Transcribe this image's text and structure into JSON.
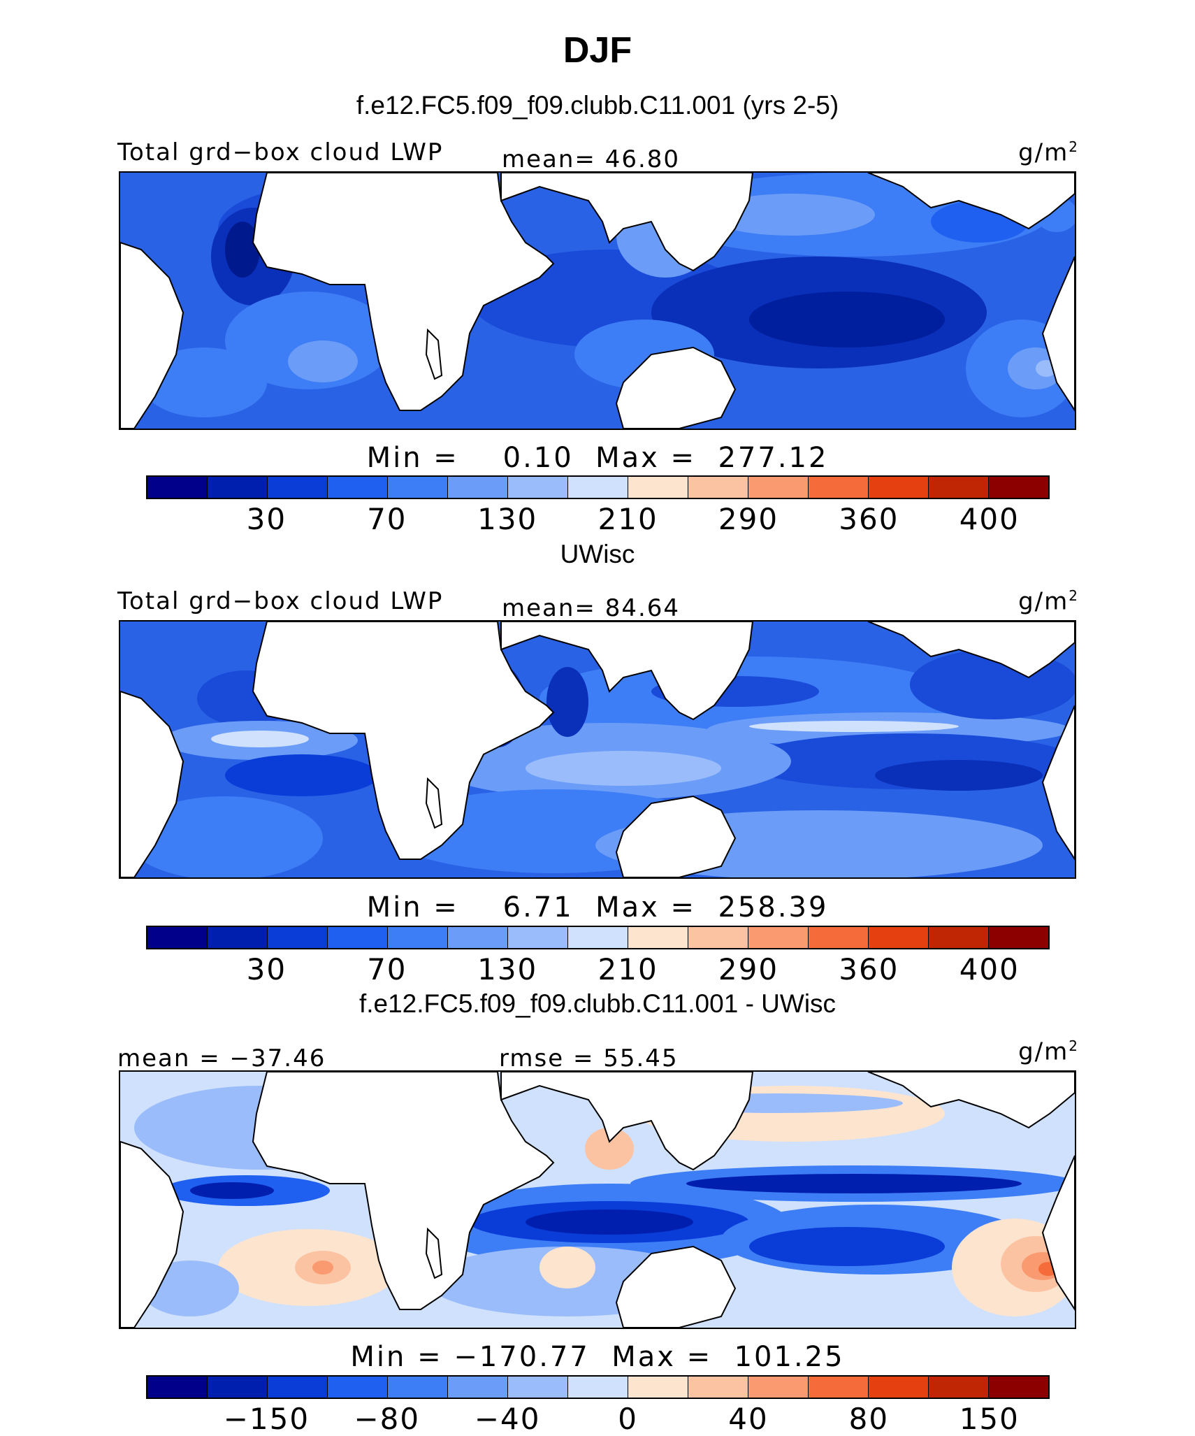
{
  "title": "DJF",
  "colorbar_abs": [
    "#00008a",
    "#001fae",
    "#0a3dd8",
    "#2060f0",
    "#3d7df5",
    "#6b9df8",
    "#9bbcfa",
    "#cfe1fc",
    "#fde4cf",
    "#fcc3a3",
    "#f99a70",
    "#f56c3a",
    "#e5400f",
    "#c02504",
    "#8c0000"
  ],
  "colorbar_diff": [
    "#00008a",
    "#001fae",
    "#0a3dd8",
    "#2060f0",
    "#3d7df5",
    "#6b9df8",
    "#9bbcfa",
    "#cfe1fc",
    "#fde4cf",
    "#fcc3a3",
    "#f99a70",
    "#f56c3a",
    "#e5400f",
    "#c02504",
    "#8c0000"
  ],
  "panels": [
    {
      "title": "f.e12.FC5.f09_f09.clubb.C11.001 (yrs 2-5)",
      "left_label": "Total grd−box cloud LWP",
      "center_label": "mean=  46.80",
      "units": "g/m",
      "units_sup": "2",
      "minmax": "Min =    0.10  Max =  277.12",
      "ticks": [
        "30",
        "70",
        "130",
        "210",
        "290",
        "360",
        "400"
      ]
    },
    {
      "title": "UWisc",
      "left_label": "Total grd−box cloud LWP",
      "center_label": "mean=  84.64",
      "units": "g/m",
      "units_sup": "2",
      "minmax": "Min =    6.71  Max =  258.39",
      "ticks": [
        "30",
        "70",
        "130",
        "210",
        "290",
        "360",
        "400"
      ]
    },
    {
      "title": "f.e12.FC5.f09_f09.clubb.C11.001 - UWisc",
      "left_label": "mean = −37.46",
      "center_label": "rmse =   55.45",
      "units": "g/m",
      "units_sup": "2",
      "minmax": "Min = −170.77  Max =  101.25",
      "ticks": [
        "−150",
        "−80",
        "−40",
        "0",
        "40",
        "80",
        "150"
      ]
    }
  ]
}
